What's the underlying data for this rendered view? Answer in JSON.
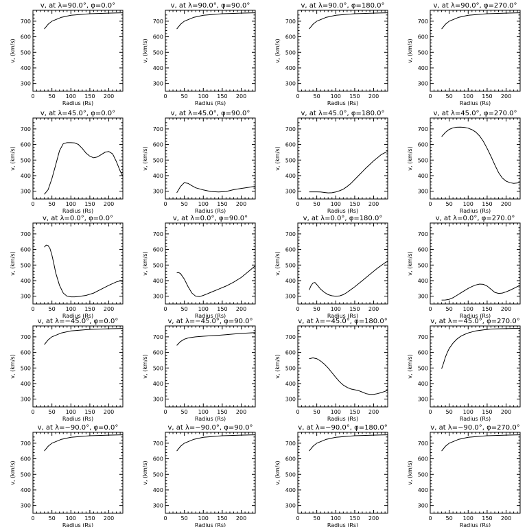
{
  "chart_data": [
    {
      "type": "line",
      "title": "v, at λ=90.0°, φ=0.0°",
      "xlabel": "Radius (Rs)",
      "ylabel": "v, (km/s)",
      "xlim": [
        0,
        237
      ],
      "ylim": [
        250,
        770
      ],
      "xticks": [
        0,
        50,
        100,
        150,
        200
      ],
      "yticks": [
        300,
        400,
        500,
        600,
        700
      ],
      "series": [
        {
          "x": [
            30,
            40,
            50,
            75,
            100,
            150,
            200,
            237
          ],
          "y": [
            650,
            680,
            700,
            725,
            738,
            748,
            752,
            754
          ]
        }
      ]
    },
    {
      "type": "line",
      "title": "v, at λ=90.0°, φ=90.0°",
      "xlabel": "Radius (Rs)",
      "ylabel": "v, (km/s)",
      "xlim": [
        0,
        237
      ],
      "ylim": [
        250,
        770
      ],
      "xticks": [
        0,
        50,
        100,
        150,
        200
      ],
      "yticks": [
        300,
        400,
        500,
        600,
        700
      ],
      "series": [
        {
          "x": [
            30,
            40,
            50,
            75,
            100,
            150,
            200,
            237
          ],
          "y": [
            650,
            680,
            700,
            725,
            738,
            748,
            752,
            754
          ]
        }
      ]
    },
    {
      "type": "line",
      "title": "v, at λ=90.0°, φ=180.0°",
      "xlabel": "Radius (Rs)",
      "ylabel": "v, (km/s)",
      "xlim": [
        0,
        237
      ],
      "ylim": [
        250,
        770
      ],
      "xticks": [
        0,
        50,
        100,
        150,
        200
      ],
      "yticks": [
        300,
        400,
        500,
        600,
        700
      ],
      "series": [
        {
          "x": [
            30,
            40,
            50,
            75,
            100,
            150,
            200,
            237
          ],
          "y": [
            650,
            680,
            700,
            725,
            738,
            748,
            752,
            754
          ]
        }
      ]
    },
    {
      "type": "line",
      "title": "v, at λ=90.0°, φ=270.0°",
      "xlabel": "Radius (Rs)",
      "ylabel": "v, (km/s)",
      "xlim": [
        0,
        237
      ],
      "ylim": [
        250,
        770
      ],
      "xticks": [
        0,
        50,
        100,
        150,
        200
      ],
      "yticks": [
        300,
        400,
        500,
        600,
        700
      ],
      "series": [
        {
          "x": [
            30,
            40,
            50,
            75,
            100,
            150,
            200,
            237
          ],
          "y": [
            650,
            680,
            700,
            725,
            738,
            748,
            752,
            754
          ]
        }
      ]
    },
    {
      "type": "line",
      "title": "v, at λ=45.0°, φ=0.0°",
      "xlabel": "Radius (Rs)",
      "ylabel": "v, (km/s)",
      "xlim": [
        0,
        237
      ],
      "ylim": [
        250,
        770
      ],
      "xticks": [
        0,
        50,
        100,
        150,
        200
      ],
      "yticks": [
        300,
        400,
        500,
        600,
        700
      ],
      "series": [
        {
          "x": [
            30,
            40,
            50,
            60,
            70,
            80,
            90,
            100,
            110,
            120,
            130,
            140,
            150,
            160,
            170,
            180,
            190,
            200,
            210,
            220,
            230,
            237
          ],
          "y": [
            280,
            310,
            380,
            470,
            560,
            605,
            612,
            612,
            610,
            600,
            575,
            545,
            525,
            515,
            520,
            535,
            550,
            555,
            540,
            490,
            430,
            395
          ]
        }
      ]
    },
    {
      "type": "line",
      "title": "v, at λ=45.0°, φ=90.0°",
      "xlabel": "Radius (Rs)",
      "ylabel": "v, (km/s)",
      "xlim": [
        0,
        237
      ],
      "ylim": [
        250,
        770
      ],
      "xticks": [
        0,
        50,
        100,
        150,
        200
      ],
      "yticks": [
        300,
        400,
        500,
        600,
        700
      ],
      "series": [
        {
          "x": [
            30,
            40,
            50,
            60,
            70,
            80,
            100,
            120,
            140,
            160,
            180,
            200,
            220,
            237
          ],
          "y": [
            290,
            330,
            355,
            350,
            335,
            322,
            308,
            298,
            295,
            298,
            310,
            318,
            325,
            332
          ]
        }
      ]
    },
    {
      "type": "line",
      "title": "v, at λ=45.0°, φ=180.0°",
      "xlabel": "Radius (Rs)",
      "ylabel": "v, (km/s)",
      "xlim": [
        0,
        237
      ],
      "ylim": [
        250,
        770
      ],
      "xticks": [
        0,
        50,
        100,
        150,
        200
      ],
      "yticks": [
        300,
        400,
        500,
        600,
        700
      ],
      "series": [
        {
          "x": [
            30,
            40,
            50,
            60,
            70,
            80,
            90,
            100,
            110,
            120,
            130,
            140,
            150,
            160,
            170,
            180,
            190,
            200,
            210,
            220,
            230,
            237
          ],
          "y": [
            296,
            296,
            296,
            295,
            292,
            289,
            290,
            295,
            303,
            313,
            330,
            350,
            375,
            400,
            425,
            450,
            472,
            495,
            515,
            535,
            548,
            555
          ]
        }
      ]
    },
    {
      "type": "line",
      "title": "v, at λ=45.0°, φ=270.0°",
      "xlabel": "Radius (Rs)",
      "ylabel": "v, (km/s)",
      "xlim": [
        0,
        237
      ],
      "ylim": [
        250,
        770
      ],
      "xticks": [
        0,
        50,
        100,
        150,
        200
      ],
      "yticks": [
        300,
        400,
        500,
        600,
        700
      ],
      "series": [
        {
          "x": [
            30,
            40,
            50,
            60,
            70,
            80,
            90,
            100,
            110,
            120,
            130,
            140,
            150,
            160,
            170,
            180,
            190,
            200,
            210,
            220,
            230,
            237
          ],
          "y": [
            650,
            678,
            697,
            707,
            711,
            712,
            710,
            705,
            695,
            680,
            655,
            620,
            575,
            525,
            470,
            420,
            385,
            365,
            355,
            350,
            353,
            360
          ]
        }
      ]
    },
    {
      "type": "line",
      "title": "v, at λ=0.0°, φ=0.0°",
      "xlabel": "Radius (Rs)",
      "ylabel": "v, (km/s)",
      "xlim": [
        0,
        237
      ],
      "ylim": [
        250,
        770
      ],
      "xticks": [
        0,
        50,
        100,
        150,
        200
      ],
      "yticks": [
        300,
        400,
        500,
        600,
        700
      ],
      "series": [
        {
          "x": [
            30,
            35,
            40,
            45,
            50,
            55,
            60,
            70,
            80,
            90,
            100,
            110,
            120,
            140,
            160,
            180,
            200,
            220,
            230,
            237
          ],
          "y": [
            615,
            628,
            625,
            605,
            565,
            510,
            450,
            370,
            320,
            300,
            296,
            296,
            298,
            305,
            320,
            345,
            370,
            392,
            398,
            395
          ]
        }
      ]
    },
    {
      "type": "line",
      "title": "v, at λ=0.0°, φ=90.0°",
      "xlabel": "Radius (Rs)",
      "ylabel": "v, (km/s)",
      "xlim": [
        0,
        237
      ],
      "ylim": [
        250,
        770
      ],
      "xticks": [
        0,
        50,
        100,
        150,
        200
      ],
      "yticks": [
        300,
        400,
        500,
        600,
        700
      ],
      "series": [
        {
          "x": [
            30,
            35,
            40,
            50,
            60,
            70,
            80,
            90,
            100,
            110,
            120,
            140,
            160,
            180,
            200,
            220,
            237
          ],
          "y": [
            450,
            452,
            445,
            410,
            360,
            320,
            300,
            297,
            305,
            315,
            325,
            345,
            365,
            390,
            420,
            460,
            495
          ]
        }
      ]
    },
    {
      "type": "line",
      "title": "v, at λ=0.0°, φ=180.0°",
      "xlabel": "Radius (Rs)",
      "ylabel": "v, (km/s)",
      "xlim": [
        0,
        237
      ],
      "ylim": [
        250,
        770
      ],
      "xticks": [
        0,
        50,
        100,
        150,
        200
      ],
      "yticks": [
        300,
        400,
        500,
        600,
        700
      ],
      "series": [
        {
          "x": [
            30,
            35,
            40,
            45,
            50,
            60,
            70,
            80,
            90,
            100,
            110,
            120,
            130,
            150,
            170,
            190,
            210,
            230,
            237
          ],
          "y": [
            340,
            368,
            385,
            388,
            375,
            345,
            325,
            310,
            303,
            300,
            302,
            310,
            325,
            360,
            400,
            440,
            480,
            515,
            525
          ]
        }
      ]
    },
    {
      "type": "line",
      "title": "v, at λ=0.0°, φ=270.0°",
      "xlabel": "Radius (Rs)",
      "ylabel": "v, (km/s)",
      "xlim": [
        0,
        237
      ],
      "ylim": [
        250,
        770
      ],
      "xticks": [
        0,
        50,
        100,
        150,
        200
      ],
      "yticks": [
        300,
        400,
        500,
        600,
        700
      ],
      "series": [
        {
          "x": [
            30,
            40,
            50,
            60,
            70,
            80,
            90,
            100,
            110,
            120,
            130,
            140,
            150,
            160,
            170,
            180,
            190,
            200,
            210,
            220,
            230,
            237
          ],
          "y": [
            275,
            276,
            280,
            290,
            305,
            320,
            335,
            350,
            362,
            372,
            378,
            376,
            365,
            345,
            325,
            318,
            320,
            328,
            338,
            350,
            362,
            372
          ]
        }
      ]
    },
    {
      "type": "line",
      "title": "v, at λ=−45.0°, φ=0.0°",
      "xlabel": "Radius (Rs)",
      "ylabel": "v, (km/s)",
      "xlim": [
        0,
        237
      ],
      "ylim": [
        250,
        770
      ],
      "xticks": [
        0,
        50,
        100,
        150,
        200
      ],
      "yticks": [
        300,
        400,
        500,
        600,
        700
      ],
      "series": [
        {
          "x": [
            30,
            40,
            50,
            75,
            100,
            150,
            200,
            237
          ],
          "y": [
            650,
            680,
            700,
            725,
            738,
            748,
            752,
            754
          ]
        }
      ]
    },
    {
      "type": "line",
      "title": "v, at λ=−45.0°, φ=90.0°",
      "xlabel": "Radius (Rs)",
      "ylabel": "v, (km/s)",
      "xlim": [
        0,
        237
      ],
      "ylim": [
        250,
        770
      ],
      "xticks": [
        0,
        50,
        100,
        150,
        200
      ],
      "yticks": [
        300,
        400,
        500,
        600,
        700
      ],
      "series": [
        {
          "x": [
            30,
            40,
            50,
            60,
            70,
            80,
            100,
            120,
            140,
            160,
            180,
            200,
            220,
            237
          ],
          "y": [
            645,
            670,
            685,
            693,
            697,
            700,
            704,
            707,
            710,
            714,
            718,
            722,
            725,
            727
          ]
        }
      ]
    },
    {
      "type": "line",
      "title": "v, at λ=−45.0°, φ=180.0°",
      "xlabel": "Radius (Rs)",
      "ylabel": "v, (km/s)",
      "xlim": [
        0,
        237
      ],
      "ylim": [
        250,
        770
      ],
      "xticks": [
        0,
        50,
        100,
        150,
        200
      ],
      "yticks": [
        300,
        400,
        500,
        600,
        700
      ],
      "series": [
        {
          "x": [
            30,
            40,
            50,
            60,
            70,
            80,
            90,
            100,
            110,
            120,
            130,
            140,
            150,
            160,
            170,
            180,
            190,
            200,
            210,
            220,
            230,
            237
          ],
          "y": [
            560,
            565,
            560,
            545,
            525,
            500,
            470,
            440,
            412,
            390,
            375,
            365,
            360,
            355,
            345,
            335,
            330,
            330,
            335,
            342,
            350,
            358
          ]
        }
      ]
    },
    {
      "type": "line",
      "title": "v, at λ=−45.0°, φ=270.0°",
      "xlabel": "Radius (Rs)",
      "ylabel": "v, (km/s)",
      "xlim": [
        0,
        237
      ],
      "ylim": [
        250,
        770
      ],
      "xticks": [
        0,
        50,
        100,
        150,
        200
      ],
      "yticks": [
        300,
        400,
        500,
        600,
        700
      ],
      "series": [
        {
          "x": [
            30,
            35,
            40,
            45,
            50,
            60,
            70,
            80,
            90,
            100,
            120,
            140,
            160,
            180,
            200,
            220,
            237
          ],
          "y": [
            495,
            530,
            570,
            600,
            625,
            660,
            685,
            703,
            715,
            725,
            738,
            745,
            750,
            752,
            753,
            754,
            754
          ]
        }
      ]
    },
    {
      "type": "line",
      "title": "v, at λ=−90.0°, φ=0.0°",
      "xlabel": "Radius (Rs)",
      "ylabel": "v, (km/s)",
      "xlim": [
        0,
        237
      ],
      "ylim": [
        250,
        770
      ],
      "xticks": [
        0,
        50,
        100,
        150,
        200
      ],
      "yticks": [
        300,
        400,
        500,
        600,
        700
      ],
      "series": [
        {
          "x": [
            30,
            40,
            50,
            75,
            100,
            150,
            200,
            237
          ],
          "y": [
            650,
            680,
            700,
            725,
            738,
            748,
            752,
            754
          ]
        }
      ]
    },
    {
      "type": "line",
      "title": "v, at λ=−90.0°, φ=90.0°",
      "xlabel": "Radius (Rs)",
      "ylabel": "v, (km/s)",
      "xlim": [
        0,
        237
      ],
      "ylim": [
        250,
        770
      ],
      "xticks": [
        0,
        50,
        100,
        150,
        200
      ],
      "yticks": [
        300,
        400,
        500,
        600,
        700
      ],
      "series": [
        {
          "x": [
            30,
            40,
            50,
            75,
            100,
            150,
            200,
            237
          ],
          "y": [
            650,
            680,
            700,
            725,
            738,
            748,
            752,
            754
          ]
        }
      ]
    },
    {
      "type": "line",
      "title": "v, at λ=−90.0°, φ=180.0°",
      "xlabel": "Radius (Rs)",
      "ylabel": "v, (km/s)",
      "xlim": [
        0,
        237
      ],
      "ylim": [
        250,
        770
      ],
      "xticks": [
        0,
        50,
        100,
        150,
        200
      ],
      "yticks": [
        300,
        400,
        500,
        600,
        700
      ],
      "series": [
        {
          "x": [
            30,
            40,
            50,
            75,
            100,
            150,
            200,
            237
          ],
          "y": [
            650,
            680,
            700,
            725,
            738,
            748,
            752,
            754
          ]
        }
      ]
    },
    {
      "type": "line",
      "title": "v, at λ=−90.0°, φ=270.0°",
      "xlabel": "Radius (Rs)",
      "ylabel": "v, (km/s)",
      "xlim": [
        0,
        237
      ],
      "ylim": [
        250,
        770
      ],
      "xticks": [
        0,
        50,
        100,
        150,
        200
      ],
      "yticks": [
        300,
        400,
        500,
        600,
        700
      ],
      "series": [
        {
          "x": [
            30,
            40,
            50,
            75,
            100,
            150,
            200,
            237
          ],
          "y": [
            650,
            680,
            700,
            725,
            738,
            748,
            752,
            754
          ]
        }
      ]
    }
  ]
}
